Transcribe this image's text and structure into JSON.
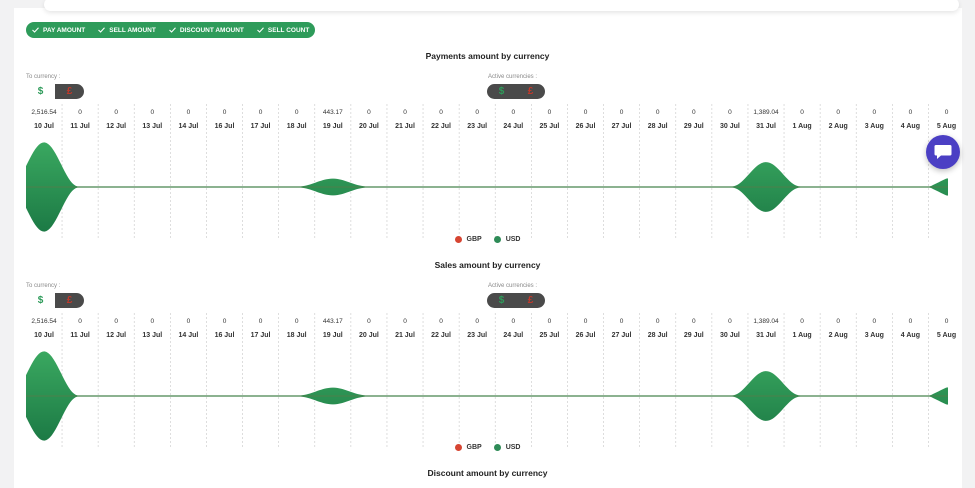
{
  "filters": [
    "PAY AMOUNT",
    "SELL AMOUNT",
    "DISCOUNT AMOUNT",
    "SELL COUNT"
  ],
  "labels": {
    "to_currency": "To currency :",
    "active_currencies": "Active currencies :"
  },
  "currency_symbols": {
    "usd": "$",
    "gbp": "£"
  },
  "colors": {
    "accent": "#2e9b5a",
    "gbp": "#d64532",
    "usd": "#2e8b57",
    "chat": "#4b3fc4"
  },
  "icons": {
    "check": "check-icon",
    "chat": "chat-icon"
  },
  "chart_data": [
    {
      "type": "area",
      "title": "Payments amount by currency",
      "categories": [
        "10 Jul",
        "11 Jul",
        "12 Jul",
        "13 Jul",
        "14 Jul",
        "16 Jul",
        "17 Jul",
        "18 Jul",
        "19 Jul",
        "20 Jul",
        "21 Jul",
        "22 Jul",
        "23 Jul",
        "24 Jul",
        "25 Jul",
        "26 Jul",
        "27 Jul",
        "28 Jul",
        "29 Jul",
        "30 Jul",
        "31 Jul",
        "1 Aug",
        "2 Aug",
        "3 Aug",
        "4 Aug",
        "5 Aug"
      ],
      "value_labels": [
        "2,516.54",
        "0",
        "0",
        "0",
        "0",
        "0",
        "0",
        "0",
        "443.17",
        "0",
        "0",
        "0",
        "0",
        "0",
        "0",
        "0",
        "0",
        "0",
        "0",
        "0",
        "1,389.04",
        "0",
        "0",
        "0",
        "0",
        "0"
      ],
      "series": [
        {
          "name": "GBP",
          "values": [
            0,
            0,
            0,
            0,
            0,
            0,
            0,
            0,
            0,
            0,
            0,
            0,
            0,
            0,
            0,
            0,
            0,
            0,
            0,
            0,
            0,
            0,
            0,
            0,
            0,
            0
          ]
        },
        {
          "name": "USD",
          "values": [
            2516.54,
            0,
            0,
            0,
            0,
            0,
            0,
            0,
            443.17,
            0,
            0,
            0,
            0,
            0,
            0,
            0,
            0,
            0,
            0,
            0,
            1389.04,
            0,
            0,
            0,
            0,
            0
          ]
        }
      ],
      "legend": [
        "GBP",
        "USD"
      ],
      "legend_position": "bottom",
      "grid": true
    },
    {
      "type": "area",
      "title": "Sales amount by currency",
      "categories": [
        "10 Jul",
        "11 Jul",
        "12 Jul",
        "13 Jul",
        "14 Jul",
        "16 Jul",
        "17 Jul",
        "18 Jul",
        "19 Jul",
        "20 Jul",
        "21 Jul",
        "22 Jul",
        "23 Jul",
        "24 Jul",
        "25 Jul",
        "26 Jul",
        "27 Jul",
        "28 Jul",
        "29 Jul",
        "30 Jul",
        "31 Jul",
        "1 Aug",
        "2 Aug",
        "3 Aug",
        "4 Aug",
        "5 Aug"
      ],
      "value_labels": [
        "2,516.54",
        "0",
        "0",
        "0",
        "0",
        "0",
        "0",
        "0",
        "443.17",
        "0",
        "0",
        "0",
        "0",
        "0",
        "0",
        "0",
        "0",
        "0",
        "0",
        "0",
        "1,389.04",
        "0",
        "0",
        "0",
        "0",
        "0"
      ],
      "series": [
        {
          "name": "GBP",
          "values": [
            0,
            0,
            0,
            0,
            0,
            0,
            0,
            0,
            0,
            0,
            0,
            0,
            0,
            0,
            0,
            0,
            0,
            0,
            0,
            0,
            0,
            0,
            0,
            0,
            0,
            0
          ]
        },
        {
          "name": "USD",
          "values": [
            2516.54,
            0,
            0,
            0,
            0,
            0,
            0,
            0,
            443.17,
            0,
            0,
            0,
            0,
            0,
            0,
            0,
            0,
            0,
            0,
            0,
            1389.04,
            0,
            0,
            0,
            0,
            0
          ]
        }
      ],
      "legend": [
        "GBP",
        "USD"
      ],
      "legend_position": "bottom",
      "grid": true
    }
  ],
  "third_title": "Discount amount by currency"
}
